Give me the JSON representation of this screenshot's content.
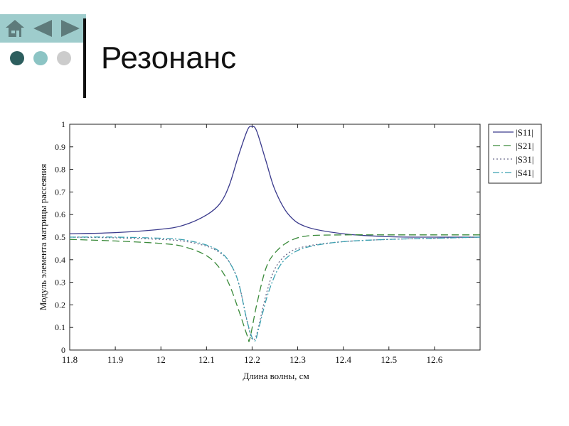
{
  "slide": {
    "title": "Резонанс"
  },
  "nav": {
    "icons": [
      "home-icon",
      "back-arrow-icon",
      "forward-arrow-icon"
    ],
    "bar_color": "#9ecccc",
    "icon_color": "#5e7b7b"
  },
  "bullets": {
    "icons": [
      "dot-dark",
      "dot-teal",
      "dot-gray"
    ],
    "colors": [
      "#2d5e5e",
      "#8cc4c4",
      "#cccccc"
    ]
  },
  "chart_data": {
    "type": "line",
    "title": "",
    "xlabel": "Длина волны, см",
    "ylabel": "Модуль элемента матрицы рассеяния",
    "xlim": [
      11.8,
      12.7
    ],
    "ylim": [
      0,
      1
    ],
    "xticks": [
      11.8,
      11.9,
      12,
      12.1,
      12.2,
      12.3,
      12.4,
      12.5,
      12.6
    ],
    "xtick_labels": [
      "11.8",
      "11.9",
      "12",
      "12.1",
      "12.2",
      "12.3",
      "12.4",
      "12.5",
      "12.6"
    ],
    "yticks": [
      0,
      0.1,
      0.2,
      0.3,
      0.4,
      0.5,
      0.6,
      0.7,
      0.8,
      0.9,
      1
    ],
    "ytick_labels": [
      "0",
      "0.1",
      "0.2",
      "0.3",
      "0.4",
      "0.5",
      "0.6",
      "0.7",
      "0.8",
      "0.9",
      "1"
    ],
    "grid": false,
    "legend_position": "right-outside",
    "series": [
      {
        "name": "|S11|",
        "color": "#3a3a8c",
        "dash": "solid",
        "points": [
          [
            11.8,
            0.515
          ],
          [
            11.9,
            0.52
          ],
          [
            12.0,
            0.535
          ],
          [
            12.05,
            0.553
          ],
          [
            12.1,
            0.598
          ],
          [
            12.13,
            0.65
          ],
          [
            12.15,
            0.73
          ],
          [
            12.17,
            0.86
          ],
          [
            12.19,
            0.975
          ],
          [
            12.2,
            0.99
          ],
          [
            12.21,
            0.97
          ],
          [
            12.23,
            0.84
          ],
          [
            12.25,
            0.71
          ],
          [
            12.28,
            0.6
          ],
          [
            12.32,
            0.545
          ],
          [
            12.4,
            0.515
          ],
          [
            12.5,
            0.502
          ],
          [
            12.6,
            0.5
          ],
          [
            12.7,
            0.5
          ]
        ]
      },
      {
        "name": "|S21|",
        "color": "#3a8a3a",
        "dash": "dashed",
        "points": [
          [
            11.8,
            0.49
          ],
          [
            11.9,
            0.483
          ],
          [
            12.0,
            0.472
          ],
          [
            12.05,
            0.458
          ],
          [
            12.1,
            0.418
          ],
          [
            12.13,
            0.36
          ],
          [
            12.15,
            0.29
          ],
          [
            12.17,
            0.18
          ],
          [
            12.19,
            0.06
          ],
          [
            12.195,
            0.05
          ],
          [
            12.21,
            0.2
          ],
          [
            12.23,
            0.36
          ],
          [
            12.25,
            0.43
          ],
          [
            12.28,
            0.48
          ],
          [
            12.32,
            0.505
          ],
          [
            12.4,
            0.51
          ],
          [
            12.5,
            0.51
          ],
          [
            12.6,
            0.51
          ],
          [
            12.7,
            0.51
          ]
        ]
      },
      {
        "name": "|S31|",
        "color": "#6a6a8a",
        "dash": "dotted",
        "points": [
          [
            11.8,
            0.5
          ],
          [
            11.9,
            0.497
          ],
          [
            12.0,
            0.49
          ],
          [
            12.05,
            0.482
          ],
          [
            12.1,
            0.46
          ],
          [
            12.13,
            0.43
          ],
          [
            12.15,
            0.39
          ],
          [
            12.17,
            0.3
          ],
          [
            12.19,
            0.12
          ],
          [
            12.2,
            0.05
          ],
          [
            12.21,
            0.07
          ],
          [
            12.23,
            0.24
          ],
          [
            12.25,
            0.36
          ],
          [
            12.28,
            0.43
          ],
          [
            12.32,
            0.46
          ],
          [
            12.4,
            0.48
          ],
          [
            12.5,
            0.49
          ],
          [
            12.6,
            0.495
          ],
          [
            12.7,
            0.5
          ]
        ]
      },
      {
        "name": "|S41|",
        "color": "#3aa0b0",
        "dash": "dashdot",
        "points": [
          [
            11.8,
            0.5
          ],
          [
            11.9,
            0.5
          ],
          [
            12.0,
            0.495
          ],
          [
            12.05,
            0.488
          ],
          [
            12.1,
            0.465
          ],
          [
            12.13,
            0.435
          ],
          [
            12.15,
            0.39
          ],
          [
            12.17,
            0.3
          ],
          [
            12.19,
            0.12
          ],
          [
            12.205,
            0.04
          ],
          [
            12.215,
            0.1
          ],
          [
            12.235,
            0.25
          ],
          [
            12.26,
            0.37
          ],
          [
            12.29,
            0.43
          ],
          [
            12.33,
            0.46
          ],
          [
            12.4,
            0.48
          ],
          [
            12.5,
            0.49
          ],
          [
            12.6,
            0.495
          ],
          [
            12.7,
            0.5
          ]
        ]
      }
    ]
  }
}
